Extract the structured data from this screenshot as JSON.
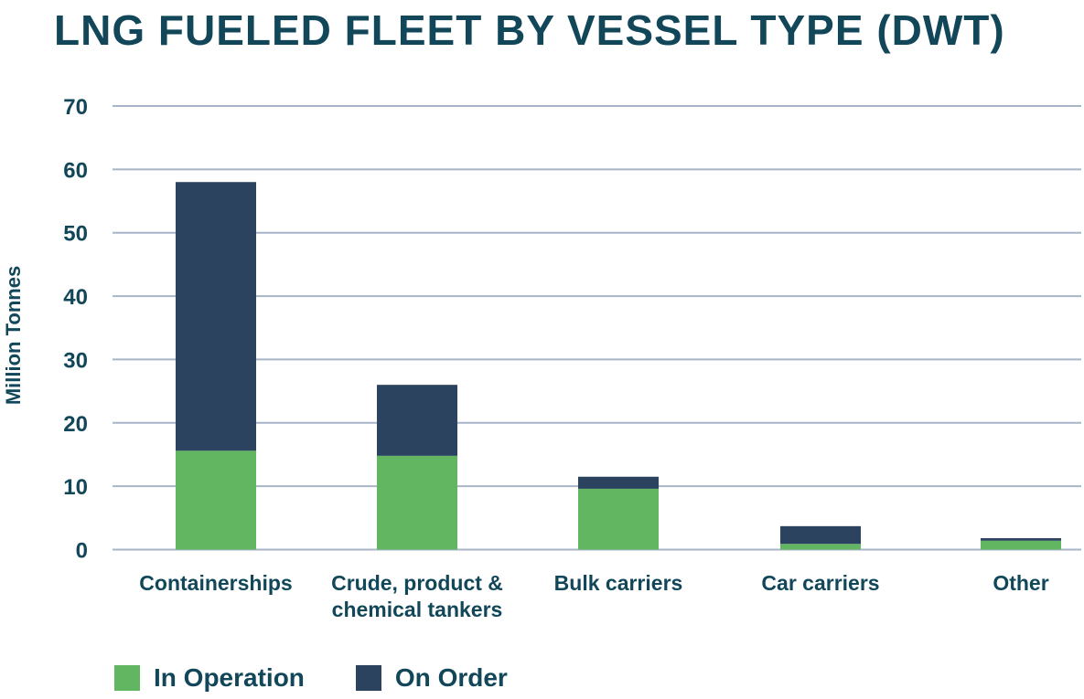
{
  "chart_data": {
    "type": "bar",
    "stacked": true,
    "title": "LNG FUELED FLEET BY VESSEL TYPE (DWT)",
    "xlabel": "",
    "ylabel": "Million Tonnes",
    "ylim": [
      0,
      70
    ],
    "yticks": [
      0,
      10,
      20,
      30,
      40,
      50,
      60,
      70
    ],
    "grid": true,
    "legend_position": "bottom-left",
    "categories": [
      [
        "Containerships"
      ],
      [
        "Crude, product &",
        "chemical tankers"
      ],
      [
        "Bulk carriers"
      ],
      [
        "Car carriers"
      ],
      [
        "Other"
      ]
    ],
    "series": [
      {
        "name": "In Operation",
        "color": "#62b662",
        "values": [
          15.6,
          14.8,
          9.6,
          0.9,
          1.4
        ]
      },
      {
        "name": "On Order",
        "color": "#2b435e",
        "values": [
          42.4,
          11.2,
          1.9,
          2.8,
          0.4
        ]
      }
    ]
  },
  "colors": {
    "text": "#124759",
    "grid": "#a8b4c8"
  }
}
